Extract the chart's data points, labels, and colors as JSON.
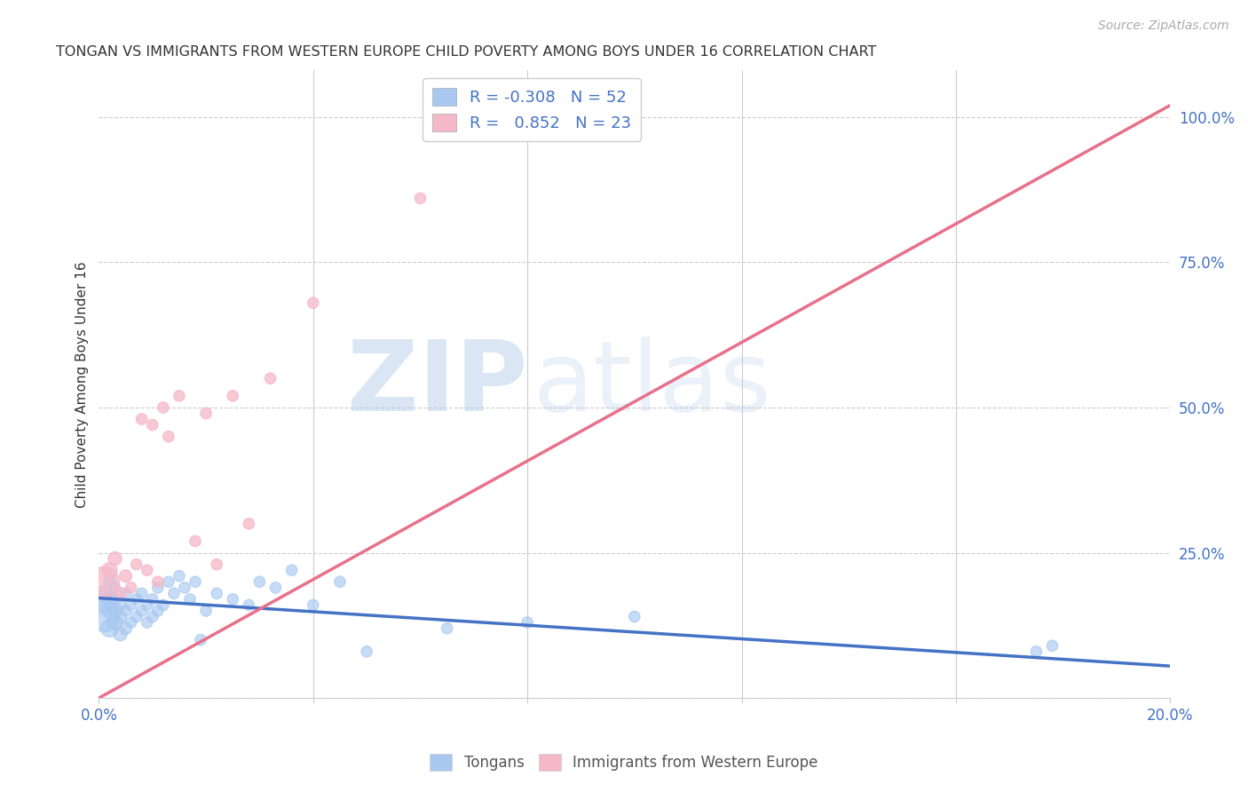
{
  "title": "TONGAN VS IMMIGRANTS FROM WESTERN EUROPE CHILD POVERTY AMONG BOYS UNDER 16 CORRELATION CHART",
  "source": "Source: ZipAtlas.com",
  "ylabel": "Child Poverty Among Boys Under 16",
  "xlim": [
    0.0,
    0.2
  ],
  "ylim": [
    0.0,
    1.08
  ],
  "xticks": [
    0.0,
    0.04,
    0.08,
    0.12,
    0.16,
    0.2
  ],
  "xticklabels": [
    "0.0%",
    "",
    "",
    "",
    "",
    "20.0%"
  ],
  "yticks_right": [
    0.0,
    0.25,
    0.5,
    0.75,
    1.0
  ],
  "ytick_right_labels": [
    "",
    "25.0%",
    "50.0%",
    "75.0%",
    "100.0%"
  ],
  "r_blue": -0.308,
  "n_blue": 52,
  "r_pink": 0.852,
  "n_pink": 23,
  "blue_color": "#A8C8F0",
  "pink_color": "#F5B8C8",
  "blue_line_color": "#4472C4",
  "pink_line_color": "#E8708A",
  "background_color": "#FFFFFF",
  "grid_color": "#CCCCCC",
  "blue_x": [
    0.001,
    0.001,
    0.001,
    0.002,
    0.002,
    0.002,
    0.002,
    0.003,
    0.003,
    0.003,
    0.003,
    0.004,
    0.004,
    0.004,
    0.005,
    0.005,
    0.005,
    0.006,
    0.006,
    0.007,
    0.007,
    0.008,
    0.008,
    0.009,
    0.009,
    0.01,
    0.01,
    0.011,
    0.011,
    0.012,
    0.013,
    0.014,
    0.015,
    0.016,
    0.017,
    0.018,
    0.019,
    0.02,
    0.022,
    0.025,
    0.028,
    0.03,
    0.033,
    0.036,
    0.04,
    0.045,
    0.05,
    0.065,
    0.08,
    0.1,
    0.175,
    0.178
  ],
  "blue_y": [
    0.14,
    0.16,
    0.18,
    0.12,
    0.15,
    0.17,
    0.2,
    0.13,
    0.15,
    0.17,
    0.19,
    0.11,
    0.14,
    0.16,
    0.12,
    0.15,
    0.18,
    0.13,
    0.16,
    0.14,
    0.17,
    0.15,
    0.18,
    0.13,
    0.16,
    0.14,
    0.17,
    0.15,
    0.19,
    0.16,
    0.2,
    0.18,
    0.21,
    0.19,
    0.17,
    0.2,
    0.1,
    0.15,
    0.18,
    0.17,
    0.16,
    0.2,
    0.19,
    0.22,
    0.16,
    0.2,
    0.08,
    0.12,
    0.13,
    0.14,
    0.08,
    0.09
  ],
  "blue_sizes": [
    600,
    200,
    150,
    200,
    150,
    120,
    100,
    150,
    120,
    100,
    80,
    120,
    100,
    80,
    100,
    80,
    80,
    80,
    80,
    80,
    80,
    80,
    80,
    80,
    80,
    80,
    80,
    80,
    80,
    80,
    80,
    80,
    80,
    80,
    80,
    80,
    80,
    80,
    80,
    80,
    80,
    80,
    80,
    80,
    80,
    80,
    80,
    80,
    80,
    80,
    80,
    80
  ],
  "pink_x": [
    0.001,
    0.002,
    0.003,
    0.004,
    0.005,
    0.006,
    0.007,
    0.008,
    0.009,
    0.01,
    0.011,
    0.012,
    0.013,
    0.015,
    0.018,
    0.02,
    0.022,
    0.025,
    0.028,
    0.032,
    0.04,
    0.06,
    0.08
  ],
  "pink_y": [
    0.2,
    0.22,
    0.24,
    0.18,
    0.21,
    0.19,
    0.23,
    0.48,
    0.22,
    0.47,
    0.2,
    0.5,
    0.45,
    0.52,
    0.27,
    0.49,
    0.23,
    0.52,
    0.3,
    0.55,
    0.68,
    0.86,
    1.0
  ],
  "pink_sizes": [
    600,
    150,
    120,
    100,
    100,
    80,
    80,
    80,
    80,
    80,
    80,
    80,
    80,
    80,
    80,
    80,
    80,
    80,
    80,
    80,
    80,
    80,
    160
  ],
  "blue_line_x0": 0.0,
  "blue_line_y0": 0.172,
  "blue_line_x1": 0.2,
  "blue_line_y1": 0.055,
  "pink_line_x0": 0.0,
  "pink_line_y0": 0.0,
  "pink_line_x1": 0.2,
  "pink_line_y1": 1.02
}
